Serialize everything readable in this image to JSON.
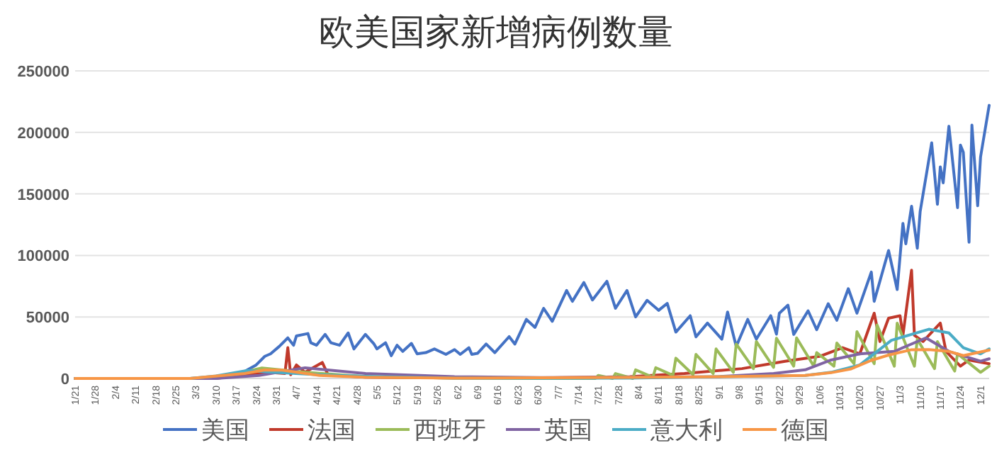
{
  "chart_data": {
    "type": "line",
    "title": "欧美国家新增病例数量",
    "xlim": [
      "--01-21",
      "--12-04"
    ],
    "ylim": [
      0,
      250000
    ],
    "yticks": [
      0,
      50000,
      100000,
      150000,
      200000,
      250000
    ],
    "grid": "y",
    "legend": "bottom",
    "xticks": [
      {
        "value": "--01-21",
        "label": "1/21"
      },
      {
        "value": "--01-28",
        "label": "1/28"
      },
      {
        "value": "--02-04",
        "label": "2/4"
      },
      {
        "value": "--02-11",
        "label": "2/11"
      },
      {
        "value": "--02-18",
        "label": "2/18"
      },
      {
        "value": "--02-25",
        "label": "2/25"
      },
      {
        "value": "--03-03",
        "label": "3/3"
      },
      {
        "value": "--03-10",
        "label": "3/10"
      },
      {
        "value": "--03-17",
        "label": "3/17"
      },
      {
        "value": "--03-24",
        "label": "3/24"
      },
      {
        "value": "--03-31",
        "label": "3/31"
      },
      {
        "value": "--04-07",
        "label": "4/7"
      },
      {
        "value": "--04-14",
        "label": "4/14"
      },
      {
        "value": "--04-21",
        "label": "4/21"
      },
      {
        "value": "--04-28",
        "label": "4/28"
      },
      {
        "value": "--05-05",
        "label": "5/5"
      },
      {
        "value": "--05-12",
        "label": "5/12"
      },
      {
        "value": "--05-19",
        "label": "5/19"
      },
      {
        "value": "--05-26",
        "label": "5/26"
      },
      {
        "value": "--06-02",
        "label": "6/2"
      },
      {
        "value": "--06-09",
        "label": "6/9"
      },
      {
        "value": "--06-16",
        "label": "6/16"
      },
      {
        "value": "--06-23",
        "label": "6/23"
      },
      {
        "value": "--06-30",
        "label": "6/30"
      },
      {
        "value": "--07-07",
        "label": "7/7"
      },
      {
        "value": "--07-14",
        "label": "7/14"
      },
      {
        "value": "--07-21",
        "label": "7/21"
      },
      {
        "value": "--07-28",
        "label": "7/28"
      },
      {
        "value": "--08-04",
        "label": "8/4"
      },
      {
        "value": "--08-11",
        "label": "8/11"
      },
      {
        "value": "--08-18",
        "label": "8/18"
      },
      {
        "value": "--08-25",
        "label": "8/25"
      },
      {
        "value": "--09-01",
        "label": "9/1"
      },
      {
        "value": "--09-08",
        "label": "9/8"
      },
      {
        "value": "--09-15",
        "label": "9/15"
      },
      {
        "value": "--09-22",
        "label": "9/22"
      },
      {
        "value": "--09-29",
        "label": "9/29"
      },
      {
        "value": "--10-06",
        "label": "10/6"
      },
      {
        "value": "--10-13",
        "label": "10/13"
      },
      {
        "value": "--10-20",
        "label": "10/20"
      },
      {
        "value": "--10-27",
        "label": "10/27"
      },
      {
        "value": "--11-03",
        "label": "11/3"
      },
      {
        "value": "--11-10",
        "label": "11/10"
      },
      {
        "value": "--11-17",
        "label": "11/17"
      },
      {
        "value": "--11-24",
        "label": "11/24"
      },
      {
        "value": "--12-01",
        "label": "12/1"
      }
    ],
    "series": [
      {
        "name": "美国",
        "color": "#4472c4",
        "x": [
          "--01-21",
          "--03-01",
          "--03-13",
          "--03-18",
          "--03-21",
          "--03-24",
          "--03-27",
          "--03-29",
          "--04-01",
          "--04-04",
          "--04-06",
          "--04-07",
          "--04-11",
          "--04-12",
          "--04-14",
          "--04-17",
          "--04-19",
          "--04-22",
          "--04-25",
          "--04-27",
          "--05-01",
          "--05-04",
          "--05-05",
          "--05-08",
          "--05-10",
          "--05-12",
          "--05-14",
          "--05-17",
          "--05-19",
          "--05-22",
          "--05-25",
          "--05-29",
          "--06-01",
          "--06-03",
          "--06-06",
          "--06-07",
          "--06-09",
          "--06-12",
          "--06-15",
          "--06-20",
          "--06-22",
          "--06-26",
          "--06-29",
          "--07-02",
          "--07-05",
          "--07-10",
          "--07-12",
          "--07-16",
          "--07-19",
          "--07-24",
          "--07-27",
          "--07-31",
          "--08-03",
          "--08-07",
          "--08-11",
          "--08-14",
          "--08-17",
          "--08-22",
          "--08-24",
          "--08-28",
          "--09-02",
          "--09-04",
          "--09-07",
          "--09-11",
          "--09-14",
          "--09-19",
          "--09-21",
          "--09-22",
          "--09-25",
          "--09-27",
          "--10-02",
          "--10-05",
          "--10-09",
          "--10-12",
          "--10-16",
          "--10-19",
          "--10-24",
          "--10-25",
          "--10-30",
          "--11-02",
          "--11-04",
          "--11-05",
          "--11-07",
          "--11-09",
          "--11-10",
          "--11-14",
          "--11-16",
          "--11-17",
          "--11-18",
          "--11-20",
          "--11-23",
          "--11-24",
          "--11-25",
          "--11-27",
          "--11-28",
          "--11-30",
          "--12-01",
          "--12-04"
        ],
        "values": [
          0,
          0,
          1000,
          3000,
          7000,
          11000,
          18000,
          20000,
          26000,
          33000,
          27000,
          34600,
          36500,
          29000,
          27000,
          35800,
          29000,
          27000,
          37000,
          24000,
          35800,
          28000,
          24000,
          29000,
          18500,
          27000,
          22000,
          28500,
          20000,
          21000,
          24000,
          19600,
          23500,
          19600,
          25000,
          19600,
          20400,
          28000,
          21000,
          34000,
          28000,
          48000,
          41500,
          57000,
          46500,
          71500,
          62700,
          78000,
          63800,
          79000,
          57000,
          71500,
          50000,
          63500,
          55400,
          61000,
          37700,
          51000,
          33800,
          45000,
          31900,
          54000,
          26000,
          48000,
          32000,
          51000,
          36000,
          53000,
          59600,
          35800,
          55000,
          39600,
          60800,
          47300,
          73000,
          53100,
          86500,
          62700,
          104000,
          72300,
          126000,
          109500,
          140000,
          105800,
          135700,
          191500,
          141500,
          172000,
          159000,
          205000,
          138800,
          189700,
          183900,
          110800,
          206000,
          140400,
          180000,
          222000
        ]
      },
      {
        "name": "法国",
        "color": "#c0392b",
        "x": [
          "--01-21",
          "--03-10",
          "--03-20",
          "--03-28",
          "--04-03",
          "--04-04",
          "--04-05",
          "--04-07",
          "--04-10",
          "--04-16",
          "--04-18",
          "--05-01",
          "--06-01",
          "--07-01",
          "--08-01",
          "--08-20",
          "--09-09",
          "--09-24",
          "--10-06",
          "--10-14",
          "--10-20",
          "--10-25",
          "--10-27",
          "--10-30",
          "--11-03",
          "--11-04",
          "--11-07",
          "--11-08",
          "--11-11",
          "--11-17",
          "--11-19",
          "--11-24",
          "--11-27",
          "--12-04"
        ],
        "values": [
          0,
          0,
          3000,
          5000,
          4000,
          25000,
          3000,
          11000,
          5000,
          13000,
          3000,
          1000,
          500,
          500,
          1500,
          4000,
          8000,
          14000,
          18000,
          25000,
          20000,
          53000,
          30000,
          49000,
          51000,
          35000,
          88000,
          35000,
          30000,
          45000,
          22000,
          10000,
          15000,
          12000
        ]
      },
      {
        "name": "西班牙",
        "color": "#9bbb59",
        "x": [
          "--01-21",
          "--03-10",
          "--03-26",
          "--04-10",
          "--05-01",
          "--06-01",
          "--07-01",
          "--07-20",
          "--07-21",
          "--07-26",
          "--07-27",
          "--08-02",
          "--08-03",
          "--08-09",
          "--08-10",
          "--08-16",
          "--08-17",
          "--08-23",
          "--08-24",
          "--08-30",
          "--08-31",
          "--09-06",
          "--09-07",
          "--09-13",
          "--09-14",
          "--09-20",
          "--09-21",
          "--09-27",
          "--09-28",
          "--10-04",
          "--10-05",
          "--10-11",
          "--10-12",
          "--10-18",
          "--10-19",
          "--10-25",
          "--10-26",
          "--11-01",
          "--11-02",
          "--11-08",
          "--11-09",
          "--11-15",
          "--11-16",
          "--11-22",
          "--11-23",
          "--12-01",
          "--12-04"
        ],
        "values": [
          0,
          0,
          8500,
          5000,
          1500,
          300,
          0,
          0,
          2500,
          0,
          4000,
          0,
          7000,
          1000,
          8800,
          2500,
          16500,
          3000,
          19600,
          4000,
          24000,
          5000,
          28000,
          8000,
          30000,
          9000,
          32700,
          10000,
          33000,
          10000,
          21000,
          10000,
          28800,
          12000,
          38000,
          12000,
          43500,
          10000,
          45000,
          10000,
          32000,
          8000,
          30000,
          6000,
          20000,
          5000,
          10000
        ]
      },
      {
        "name": "英国",
        "color": "#8064a2",
        "x": [
          "--01-21",
          "--03-10",
          "--03-25",
          "--04-10",
          "--05-01",
          "--06-01",
          "--07-01",
          "--08-01",
          "--09-01",
          "--09-20",
          "--10-01",
          "--10-10",
          "--10-20",
          "--11-01",
          "--11-12",
          "--11-20",
          "--12-01",
          "--12-04"
        ],
        "values": [
          0,
          0,
          2500,
          8700,
          4000,
          1500,
          700,
          1000,
          1500,
          4000,
          7000,
          15000,
          20000,
          22000,
          33000,
          22000,
          14000,
          16000
        ]
      },
      {
        "name": "意大利",
        "color": "#4bacc6",
        "x": [
          "--01-21",
          "--03-01",
          "--03-10",
          "--03-21",
          "--04-01",
          "--04-15",
          "--05-01",
          "--06-01",
          "--07-01",
          "--08-01",
          "--09-01",
          "--10-01",
          "--10-10",
          "--10-20",
          "--10-31",
          "--11-13",
          "--11-20",
          "--11-25",
          "--12-01",
          "--12-04"
        ],
        "values": [
          0,
          0,
          2000,
          6500,
          4800,
          3000,
          1800,
          300,
          200,
          300,
          1400,
          2500,
          5000,
          11000,
          31000,
          40000,
          37000,
          25000,
          20000,
          24000
        ]
      },
      {
        "name": "德国",
        "color": "#f79646",
        "x": [
          "--01-21",
          "--03-01",
          "--03-20",
          "--03-27",
          "--04-02",
          "--04-15",
          "--05-01",
          "--06-01",
          "--08-01",
          "--09-01",
          "--10-01",
          "--10-10",
          "--10-17",
          "--10-24",
          "--10-30",
          "--11-07",
          "--11-13",
          "--11-20",
          "--11-25",
          "--12-04"
        ],
        "values": [
          0,
          0,
          4000,
          6900,
          6800,
          2500,
          1000,
          300,
          800,
          1500,
          2500,
          4700,
          7800,
          14700,
          19000,
          23400,
          23500,
          22000,
          18600,
          23000
        ]
      }
    ]
  }
}
